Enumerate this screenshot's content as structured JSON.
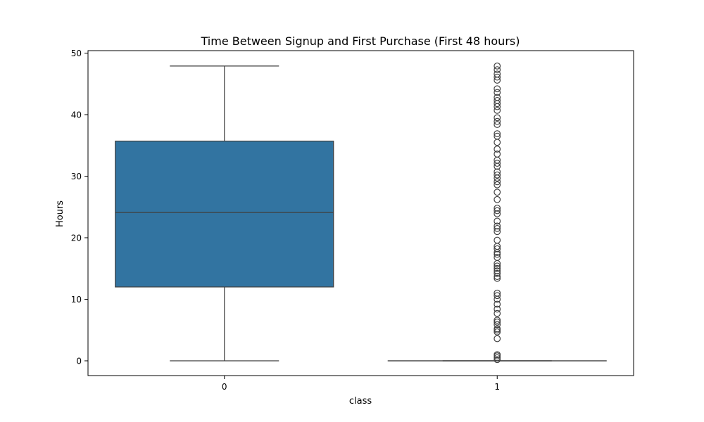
{
  "chart_data": {
    "type": "box",
    "title": "Time Between Signup and First Purchase (First 48 hours)",
    "xlabel": "class",
    "ylabel": "Hours",
    "categories": [
      "0",
      "1"
    ],
    "ylim": [
      -2.4,
      50.4
    ],
    "yticks": [
      0,
      10,
      20,
      30,
      40,
      50
    ],
    "grid": false,
    "box_color": "#3274a1",
    "line_color": "#3f3f3f",
    "boxes": [
      {
        "category": "0",
        "whisker_low": 0,
        "q1": 12,
        "median": 24.1,
        "q3": 35.7,
        "whisker_high": 47.9,
        "outliers": []
      },
      {
        "category": "1",
        "whisker_low": 0,
        "q1": 0,
        "median": 0,
        "q3": 0,
        "whisker_high": 0,
        "outliers": [
          0.2,
          0.5,
          0.8,
          1.0,
          3.6,
          4.7,
          5.0,
          5.2,
          5.9,
          6.3,
          6.6,
          7.7,
          8.4,
          9.2,
          10.0,
          10.6,
          11.0,
          13.4,
          13.7,
          14.2,
          14.6,
          15.0,
          15.4,
          15.8,
          16.8,
          17.3,
          17.6,
          18.2,
          18.6,
          19.6,
          21.0,
          21.5,
          21.9,
          22.7,
          23.9,
          24.4,
          24.8,
          26.2,
          27.4,
          28.6,
          29.1,
          29.7,
          30.2,
          30.7,
          31.6,
          32.1,
          32.6,
          33.6,
          34.4,
          35.5,
          36.5,
          36.9,
          38.4,
          38.9,
          39.5,
          40.7,
          41.3,
          41.8,
          42.3,
          42.8,
          43.6,
          44.2,
          45.6,
          46.1,
          46.6,
          47.3,
          47.9
        ]
      }
    ]
  }
}
